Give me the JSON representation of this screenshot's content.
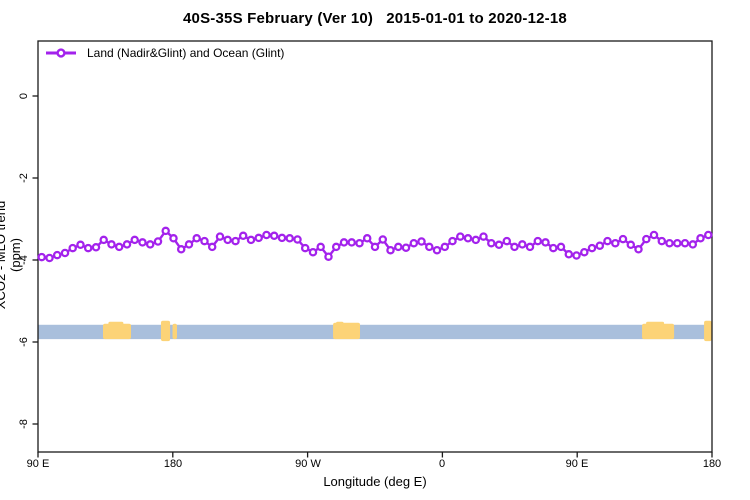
{
  "title": "40S-35S February (Ver 10)   2015-01-01 to 2020-12-18",
  "colors": {
    "series": "#a322ec",
    "ocean_band": "#a9bfdc",
    "land_patch": "#fcd377",
    "axis": "#1a1a1a",
    "background": "#ffffff"
  },
  "chart_data": {
    "type": "line",
    "title": "40S-35S February (Ver 10)   2015-01-01 to 2020-12-18",
    "xlabel": "Longitude (deg E)",
    "ylabel": "XCO2 - MLO trend (ppm)",
    "legend_position": "top-left",
    "grid": false,
    "xlim_deg_along_axis": [
      90,
      540
    ],
    "ylim": [
      -8.7,
      1.3
    ],
    "x_ticks": [
      {
        "pos": 90,
        "label": "90 E"
      },
      {
        "pos": 180,
        "label": "180"
      },
      {
        "pos": 270,
        "label": "90 W"
      },
      {
        "pos": 360,
        "label": "0"
      },
      {
        "pos": 450,
        "label": "90 E"
      },
      {
        "pos": 540,
        "label": "180"
      }
    ],
    "y_ticks": [
      {
        "val": 0,
        "label": "0"
      },
      {
        "val": -2,
        "label": "-2"
      },
      {
        "val": -4,
        "label": "-4"
      },
      {
        "val": -6,
        "label": "-6"
      },
      {
        "val": -8,
        "label": "-8"
      }
    ],
    "series": [
      {
        "name": "Land (Nadir&Glint) and Ocean (Glint)",
        "marker": "open-circle",
        "lon_start": 92.5,
        "lon_end": 537.5,
        "values": [
          -3.93,
          -3.95,
          -3.88,
          -3.83,
          -3.71,
          -3.63,
          -3.71,
          -3.69,
          -3.51,
          -3.62,
          -3.68,
          -3.62,
          -3.51,
          -3.57,
          -3.62,
          -3.55,
          -3.29,
          -3.47,
          -3.74,
          -3.62,
          -3.47,
          -3.54,
          -3.68,
          -3.43,
          -3.51,
          -3.54,
          -3.41,
          -3.51,
          -3.46,
          -3.39,
          -3.41,
          -3.46,
          -3.47,
          -3.5,
          -3.71,
          -3.81,
          -3.68,
          -3.92,
          -3.68,
          -3.57,
          -3.57,
          -3.59,
          -3.47,
          -3.68,
          -3.5,
          -3.76,
          -3.68,
          -3.7,
          -3.59,
          -3.55,
          -3.68,
          -3.76,
          -3.68,
          -3.54,
          -3.43,
          -3.47,
          -3.51,
          -3.43,
          -3.59,
          -3.63,
          -3.54,
          -3.68,
          -3.62,
          -3.68,
          -3.54,
          -3.57,
          -3.71,
          -3.68,
          -3.86,
          -3.89,
          -3.81,
          -3.71,
          -3.65,
          -3.54,
          -3.59,
          -3.49,
          -3.63,
          -3.74,
          -3.49,
          -3.39,
          -3.54,
          -3.59,
          -3.59,
          -3.59,
          -3.62,
          -3.47,
          -3.39
        ]
      }
    ],
    "map_band": {
      "description": "latitude-band map strip: ocean in blue, land in orange",
      "top_val": -5.58,
      "bottom_val": -5.93,
      "land_patches": [
        {
          "lon0": 133.4,
          "lon1": 152.1,
          "rise": 1,
          "drop": 0
        },
        {
          "lon0": 172.1,
          "lon1": 178.2,
          "rise": 4,
          "drop": 2
        },
        {
          "lon0": 179.8,
          "lon1": 182.8,
          "rise": 1,
          "drop": 0
        },
        {
          "lon0": 287.0,
          "lon1": 305.0,
          "rise": 2,
          "drop": 0
        },
        {
          "lon0": 493.3,
          "lon1": 514.7,
          "rise": 1,
          "drop": 0
        },
        {
          "lon0": 534.7,
          "lon1": 539.8,
          "rise": 4,
          "drop": 2
        }
      ],
      "land_specks": [
        {
          "lon0": 137,
          "lon1": 147
        },
        {
          "lon0": 289,
          "lon1": 294
        },
        {
          "lon0": 496,
          "lon1": 508
        },
        {
          "lon0": 535,
          "lon1": 539
        }
      ]
    }
  }
}
